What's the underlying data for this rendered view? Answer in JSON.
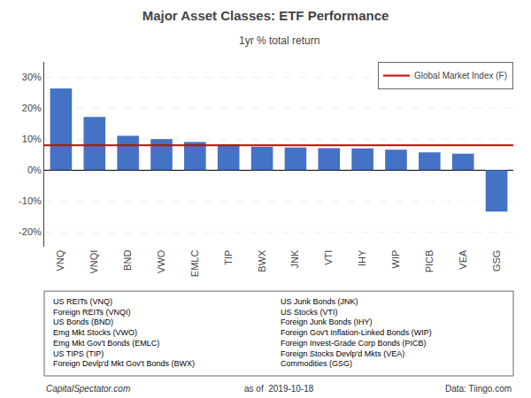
{
  "chart_data": {
    "type": "bar",
    "title": "Major Asset Classes: ETF Performance",
    "subtitle": "1yr % total return",
    "categories": [
      "VNQ",
      "VNQI",
      "BND",
      "VWO",
      "EMLC",
      "TIP",
      "BWX",
      "JNK",
      "VTI",
      "IHY",
      "WIP",
      "PICB",
      "VEA",
      "GSG"
    ],
    "values": [
      26.4,
      17.2,
      11.1,
      10.0,
      9.1,
      8.2,
      7.5,
      7.3,
      7.1,
      7.0,
      6.6,
      5.7,
      5.3,
      -13.5
    ],
    "color": "#4472C4",
    "ylim": [
      -25,
      35
    ],
    "yticks": [
      {
        "value": -20,
        "label": "-20%"
      },
      {
        "value": -10,
        "label": "-10%"
      },
      {
        "value": 0,
        "label": "0%"
      },
      {
        "value": 10,
        "label": "10%"
      },
      {
        "value": 20,
        "label": "20%"
      },
      {
        "value": 30,
        "label": "30%"
      }
    ],
    "grid": true,
    "legend": "upper right",
    "reference_line": {
      "name": "Global Market Index (F)",
      "value": 8.0,
      "color": "#CC0000"
    },
    "key_left": [
      "US REITs (VNQ)",
      "Foreign REITs (VNQI)",
      "US Bonds (BND)",
      "Emg Mkt Stocks (VWO)",
      "Emg Mkt Gov't Bonds (EMLC)",
      "US TIPS (TIP)",
      "Foreign Devlp'd Mkt Gov't Bonds (BWX)"
    ],
    "key_right": [
      "US Junk Bonds (JNK)",
      "US Stocks (VTI)",
      "Foreign Junk Bonds (IHY)",
      "Foreign Gov't Inflation-Linked Bonds (WIP)",
      "Foreign Invest-Grade Corp Bonds (PICB)",
      "Foreign Stocks Devlp'd Mkts (VEA)",
      "Commodities (GSG)"
    ],
    "footer": [
      "CapitalSpectator.com",
      "as of  2019-10-18",
      "Data: Tiingo.com"
    ]
  }
}
